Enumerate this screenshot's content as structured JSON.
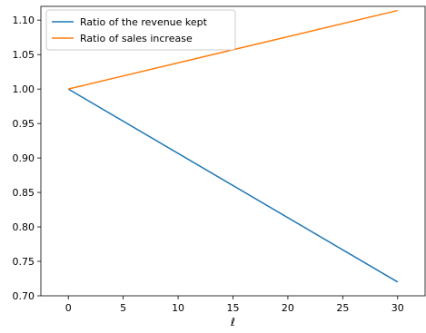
{
  "chart_data": {
    "type": "line",
    "title": "",
    "xlabel": "ℓ",
    "ylabel": "",
    "xlim": [
      -2.5,
      32.5
    ],
    "ylim": [
      0.7,
      1.12
    ],
    "x_ticks": [
      0,
      5,
      10,
      15,
      20,
      25,
      30
    ],
    "x_tick_labels": [
      "0",
      "5",
      "10",
      "15",
      "20",
      "25",
      "30"
    ],
    "y_ticks": [
      0.7,
      0.75,
      0.8,
      0.85,
      0.9,
      0.95,
      1.0,
      1.05,
      1.1
    ],
    "y_tick_labels": [
      "0.70",
      "0.75",
      "0.80",
      "0.85",
      "0.90",
      "0.95",
      "1.00",
      "1.05",
      "1.10"
    ],
    "grid": false,
    "legend_position": "top-left",
    "series": [
      {
        "name": "Ratio of the revenue kept",
        "color": "#1f77b4",
        "x": [
          0,
          30
        ],
        "y": [
          1.0,
          0.72
        ]
      },
      {
        "name": "Ratio of sales increase",
        "color": "#ff7f0e",
        "x": [
          0,
          30
        ],
        "y": [
          1.0,
          1.114
        ]
      }
    ]
  }
}
